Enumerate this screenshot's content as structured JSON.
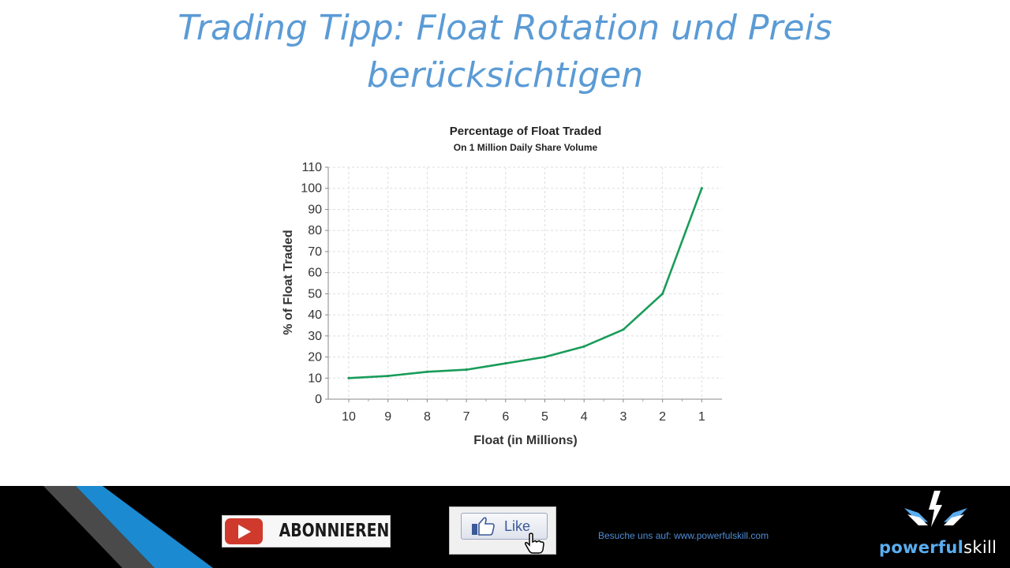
{
  "slide": {
    "title_line1": "Trading Tipp: Float Rotation und Preis",
    "title_line2": "berücksichtigen"
  },
  "chart_data": {
    "type": "line",
    "title": "Percentage of Float Traded",
    "subtitle": "On 1 Million Daily Share Volume",
    "xlabel": "Float (in Millions)",
    "ylabel": "% of Float Traded",
    "x": [
      "10",
      "9",
      "8",
      "7",
      "6",
      "5",
      "4",
      "3",
      "2",
      "1"
    ],
    "series": [
      {
        "values": [
          10,
          11,
          13,
          14,
          17,
          20,
          25,
          33,
          50,
          100
        ],
        "color": "#1a9c5a"
      }
    ],
    "ylim": [
      0,
      110
    ],
    "yticks": [
      0,
      10,
      20,
      30,
      40,
      50,
      60,
      70,
      80,
      90,
      100,
      110
    ],
    "grid": true
  },
  "footer": {
    "subscribe_label": "ABONNIEREN",
    "like_label": "Like",
    "website_text": "Besuche uns auf: www.powerfulskill.com",
    "brand_part1": "powerful",
    "brand_part2": "skill",
    "colors": {
      "stripe_blue": "#1b8ad0",
      "stripe_gray": "#4a4a4a",
      "brand_blue": "#5aaef0"
    },
    "icons": [
      "youtube-play-icon",
      "thumbs-up-icon",
      "hand-cursor-icon",
      "lightning-wings-logo"
    ]
  }
}
